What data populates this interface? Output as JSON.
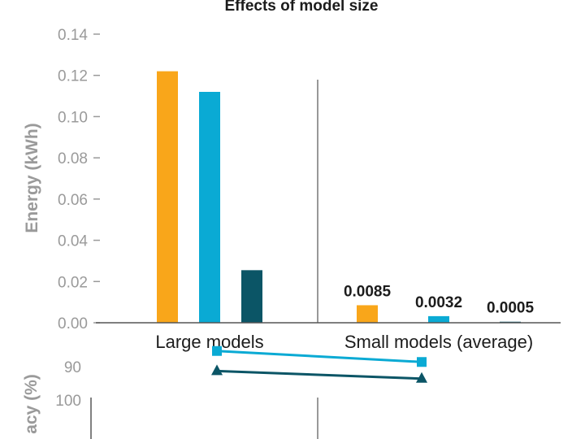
{
  "chart_data": [
    {
      "type": "bar",
      "title": "Effects of model size",
      "ylabel": "Energy (kWh)",
      "xlabel": "",
      "ylim": [
        0,
        0.14
      ],
      "yticks": [
        "0.00",
        "0.02",
        "0.04",
        "0.06",
        "0.08",
        "0.10",
        "0.12",
        "0.14"
      ],
      "categories": [
        "Large models",
        "Small models (average)"
      ],
      "series": [
        {
          "values": [
            0.122,
            0.0085
          ],
          "color": "#f9a61a"
        },
        {
          "values": [
            0.112,
            0.0032
          ],
          "color": "#0aaad4"
        },
        {
          "values": [
            0.0255,
            0.0005
          ],
          "color": "#0b5566"
        }
      ],
      "data_labels": [
        "0.0085",
        "0.0032",
        "0.0005"
      ],
      "grid": false
    },
    {
      "type": "line",
      "ylabel": "acy (%)",
      "ylim": [
        80,
        100
      ],
      "yticks": [
        "100",
        "90"
      ],
      "categories": [
        "Large models",
        "Small models (average)"
      ],
      "series": [
        {
          "values": [
            91.3,
            93.6
          ],
          "color": "#0b5566",
          "marker": "triangle"
        },
        {
          "values": [
            85.3,
            88.6
          ],
          "color": "#0aaad4",
          "marker": "square"
        }
      ]
    }
  ]
}
